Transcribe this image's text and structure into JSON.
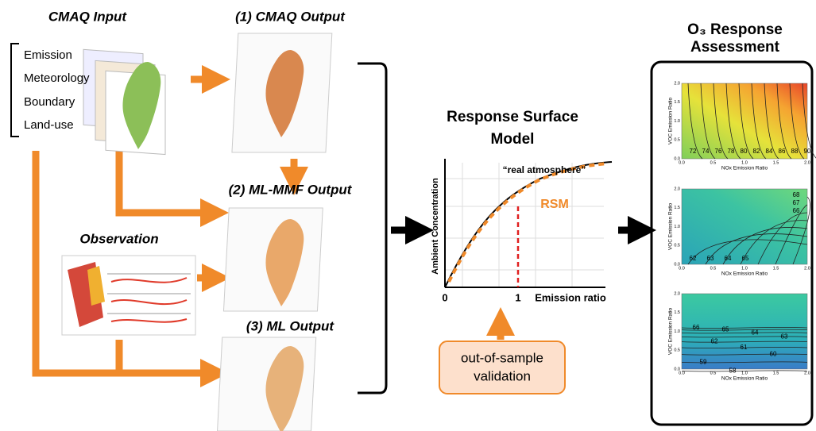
{
  "cmaq_input": {
    "title": "CMAQ Input",
    "items": [
      "Emission",
      "Meteorology",
      "Boundary",
      "Land-use"
    ]
  },
  "outputs": [
    "(1) CMAQ Output",
    "(2) ML-MMF Output",
    "(3) ML Output"
  ],
  "observation": "Observation",
  "rsm": {
    "title": [
      "Response Surface",
      "Model"
    ],
    "y_label": "Ambient Concentration",
    "x_label": "Emission ratio",
    "x_ticks": [
      "0",
      "1"
    ],
    "annotation": "“real atmosphere”",
    "curve_label": "RSM"
  },
  "validation": [
    "out-of-sample",
    "validation"
  ],
  "assessment": {
    "title": [
      "O₃ Response",
      "Assessment"
    ],
    "x_label": "NOx Emission Ratio",
    "y_label": "VOC Emission Ratio",
    "ticks": [
      "0.0",
      "0.5",
      "1.0",
      "1.5",
      "2.0"
    ],
    "panels": [
      {
        "contour_labels": [
          "72",
          "74",
          "76",
          "78",
          "80",
          "82",
          "84",
          "86",
          "88",
          "90"
        ]
      },
      {
        "contour_labels": [
          "62",
          "63",
          "64",
          "65",
          "66",
          "67",
          "68"
        ]
      },
      {
        "contour_labels": [
          "66",
          "65",
          "64",
          "63",
          "62",
          "61",
          "60",
          "59",
          "58"
        ]
      }
    ]
  }
}
